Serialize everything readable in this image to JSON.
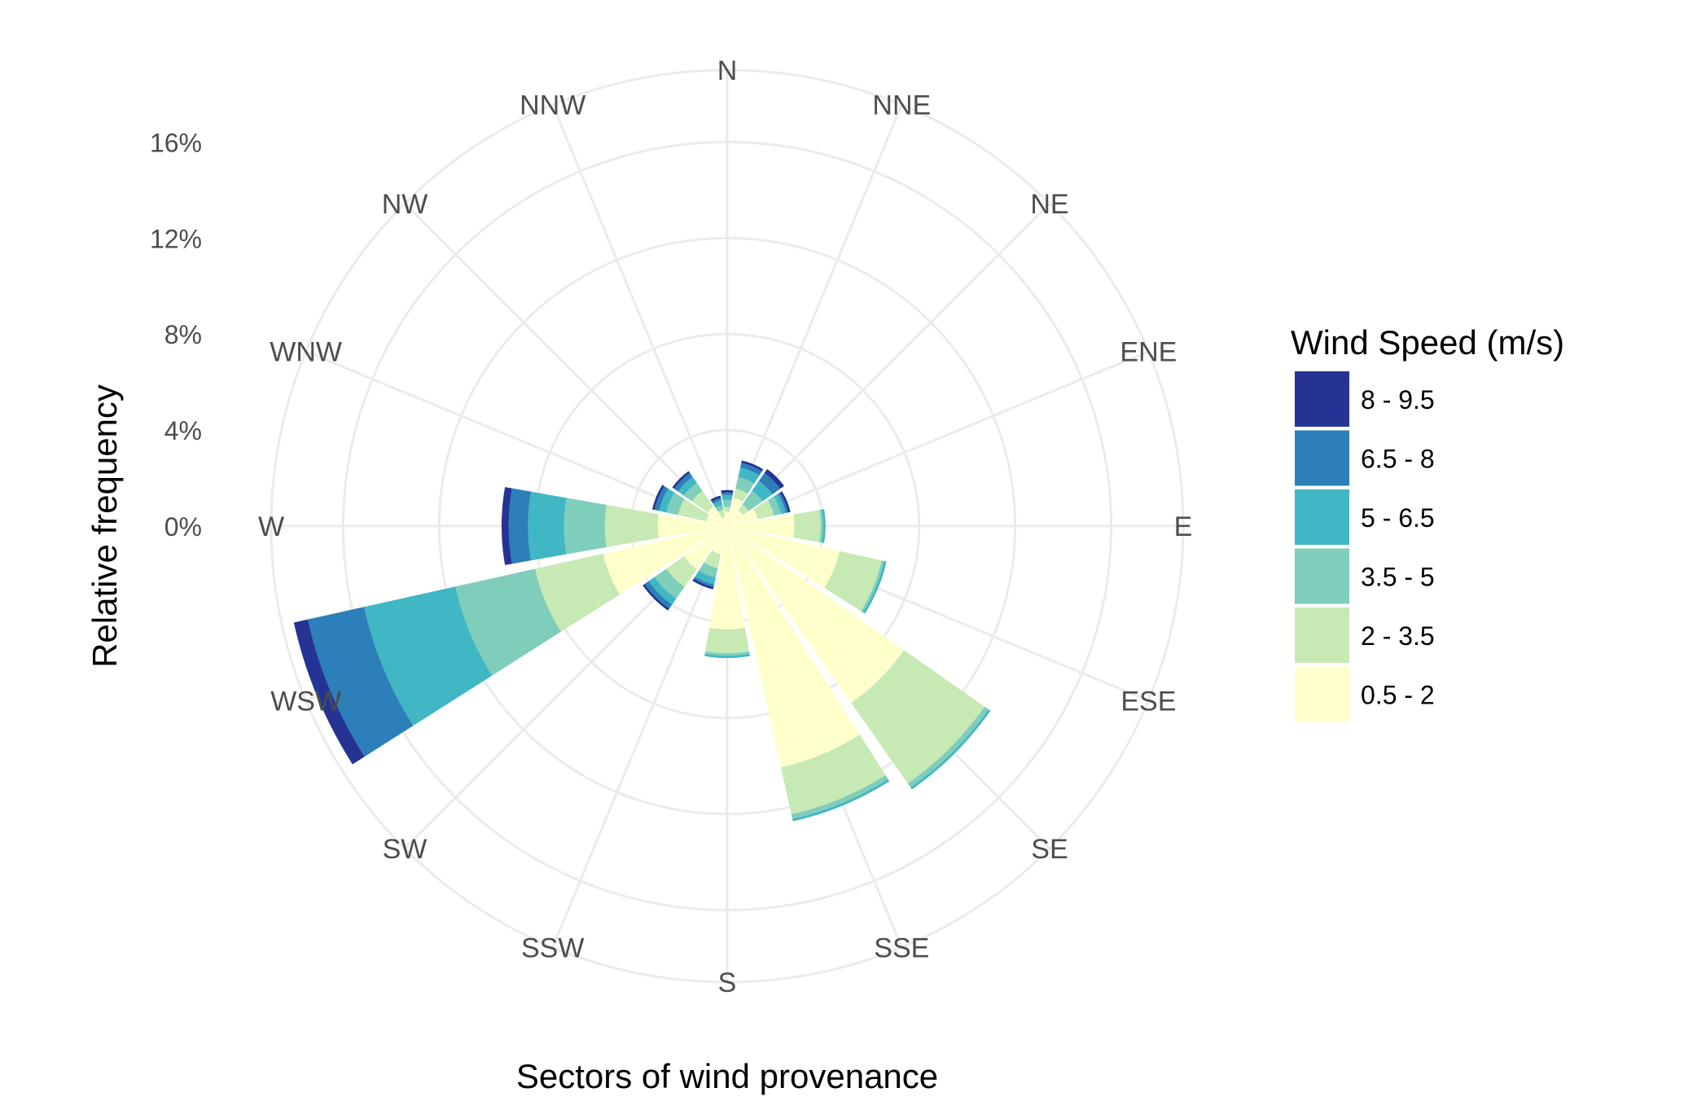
{
  "chart_data": {
    "type": "wind_rose",
    "xlabel": "Sectors of wind provenance",
    "ylabel": "Relative frequency",
    "directions": [
      "N",
      "NNE",
      "NE",
      "ENE",
      "E",
      "ESE",
      "SE",
      "SSE",
      "S",
      "SSW",
      "SW",
      "WSW",
      "W",
      "WNW",
      "NW",
      "NNW"
    ],
    "radial_ticks": [
      "0%",
      "4%",
      "8%",
      "12%",
      "16%"
    ],
    "radial_tick_values": [
      0,
      4,
      8,
      12,
      16
    ],
    "rlim": [
      0,
      19
    ],
    "grid": true,
    "legend": {
      "title": "Wind Speed (m/s)",
      "placement": "right"
    },
    "series": [
      {
        "name": "0.5 - 2",
        "color": "#ffffcc",
        "values": [
          0.6,
          1.2,
          0.8,
          1.3,
          2.8,
          4.8,
          9.0,
          10.3,
          4.3,
          1.2,
          2.2,
          5.3,
          2.9,
          0.9,
          1.0,
          0.4
        ]
      },
      {
        "name": "2 - 3.5",
        "color": "#c7e9b4",
        "values": [
          0.2,
          0.4,
          0.3,
          0.7,
          1.1,
          1.8,
          4.1,
          2.0,
          1.0,
          0.6,
          0.9,
          2.9,
          2.2,
          1.2,
          0.8,
          0.3
        ]
      },
      {
        "name": "3.5 - 5",
        "color": "#7fcdbb",
        "values": [
          0.3,
          0.5,
          0.7,
          0.3,
          0.1,
          0.1,
          0.2,
          0.2,
          0.1,
          0.4,
          0.6,
          3.4,
          1.7,
          0.5,
          0.4,
          0.2
        ]
      },
      {
        "name": "5 - 6.5",
        "color": "#41b6c4",
        "values": [
          0.2,
          0.4,
          0.5,
          0.2,
          0.1,
          0.1,
          0.1,
          0.1,
          0.1,
          0.3,
          0.3,
          3.9,
          1.5,
          0.3,
          0.3,
          0.2
        ]
      },
      {
        "name": "6.5 - 8",
        "color": "#2c7fb8",
        "values": [
          0.1,
          0.2,
          0.4,
          0.1,
          0.0,
          0.0,
          0.0,
          0.0,
          0.0,
          0.1,
          0.2,
          2.4,
          0.8,
          0.2,
          0.2,
          0.1
        ]
      },
      {
        "name": "8 - 9.5",
        "color": "#253494",
        "values": [
          0.1,
          0.1,
          0.2,
          0.1,
          0.0,
          0.0,
          0.0,
          0.0,
          0.0,
          0.1,
          0.1,
          0.6,
          0.3,
          0.1,
          0.1,
          0.1
        ]
      }
    ]
  }
}
